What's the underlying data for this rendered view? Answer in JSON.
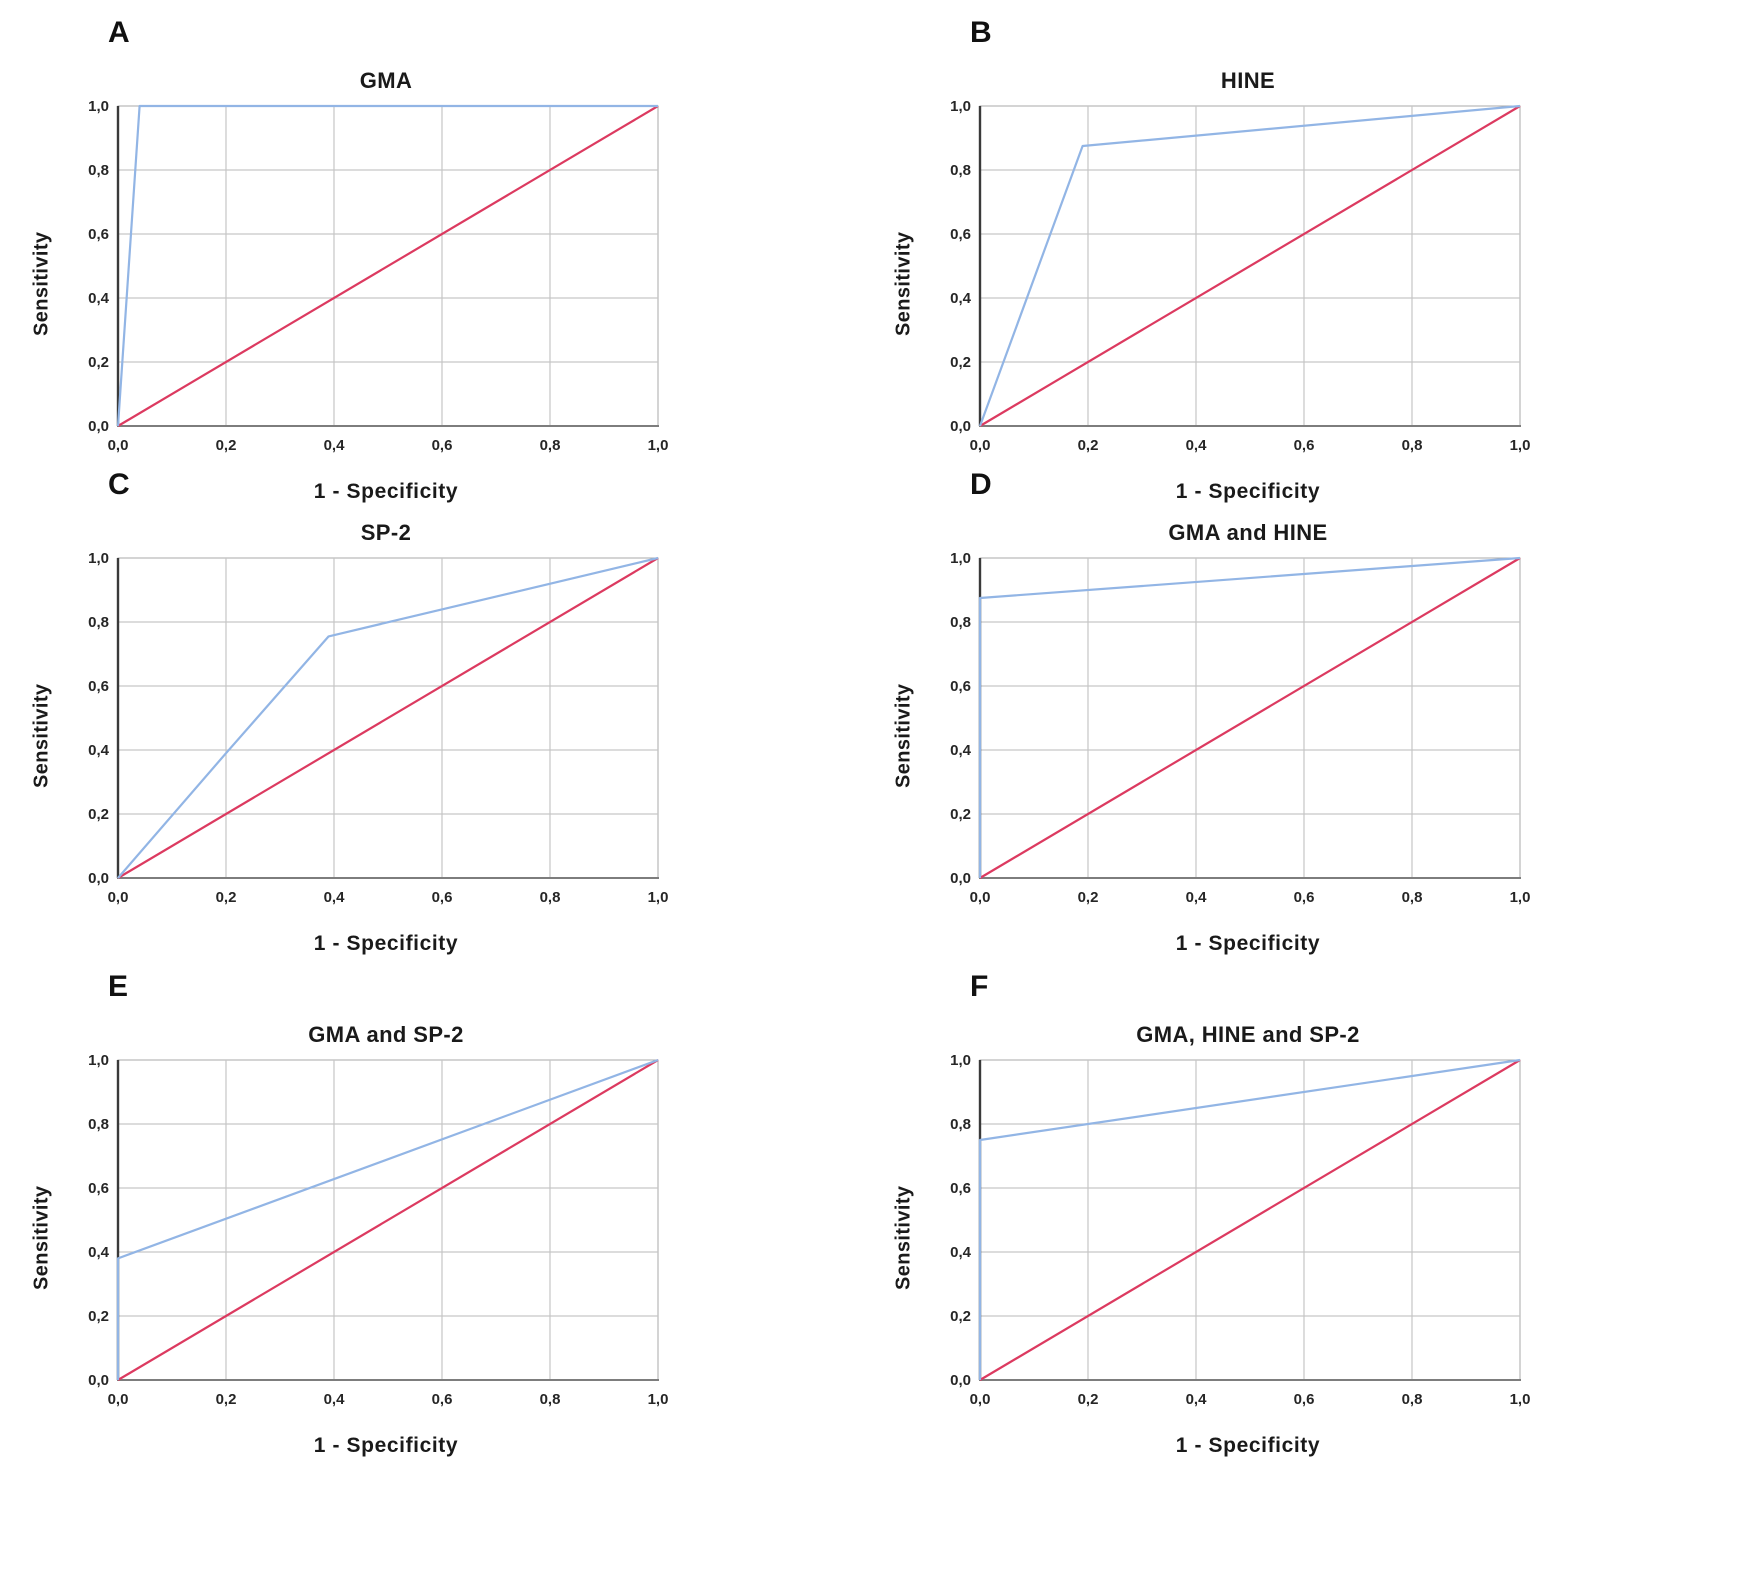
{
  "colors": {
    "roc_curve": "#92b5e5",
    "reference_line": "#dc3a60",
    "gridline": "#c6c6c6",
    "frame": "#a8a8a8",
    "y_axis": "#3a3a3a",
    "x_axis": "#7d7d7d",
    "text": "#262626"
  },
  "chart_data": [
    {
      "panel_label": "A",
      "type": "line",
      "title": "GMA",
      "xlabel": "1 - Specificity",
      "ylabel": "Sensitivity",
      "xlim": [
        0,
        1
      ],
      "ylim": [
        0,
        1
      ],
      "grid": true,
      "legend": "none",
      "tick_values": [
        0,
        0.2,
        0.4,
        0.6,
        0.8,
        1.0
      ],
      "x_tick_labels": [
        "0,0",
        "0,2",
        "0,4",
        "0,6",
        "0,8",
        "1,0"
      ],
      "y_tick_labels": [
        "0,0",
        "0,2",
        "0,4",
        "0,6",
        "0,8",
        "1,0"
      ],
      "series": [
        {
          "name": "ROC curve",
          "color": "#92b5e5",
          "points": [
            [
              0,
              0
            ],
            [
              0.04,
              1.0
            ],
            [
              1.0,
              1.0
            ]
          ]
        },
        {
          "name": "Reference line",
          "color": "#dc3a60",
          "points": [
            [
              0,
              0
            ],
            [
              1.0,
              1.0
            ]
          ]
        }
      ]
    },
    {
      "panel_label": "B",
      "type": "line",
      "title": "HINE",
      "xlabel": "1 - Specificity",
      "ylabel": "Sensitivity",
      "xlim": [
        0,
        1
      ],
      "ylim": [
        0,
        1
      ],
      "grid": true,
      "legend": "none",
      "tick_values": [
        0,
        0.2,
        0.4,
        0.6,
        0.8,
        1.0
      ],
      "x_tick_labels": [
        "0,0",
        "0,2",
        "0,4",
        "0,6",
        "0,8",
        "1,0"
      ],
      "y_tick_labels": [
        "0,0",
        "0,2",
        "0,4",
        "0,6",
        "0,8",
        "1,0"
      ],
      "series": [
        {
          "name": "ROC curve",
          "color": "#92b5e5",
          "points": [
            [
              0,
              0
            ],
            [
              0.19,
              0.875
            ],
            [
              1.0,
              1.0
            ]
          ]
        },
        {
          "name": "Reference line",
          "color": "#dc3a60",
          "points": [
            [
              0,
              0
            ],
            [
              1.0,
              1.0
            ]
          ]
        }
      ]
    },
    {
      "panel_label": "C",
      "type": "line",
      "title": "SP-2",
      "xlabel": "1 - Specificity",
      "ylabel": "Sensitivity",
      "xlim": [
        0,
        1
      ],
      "ylim": [
        0,
        1
      ],
      "grid": true,
      "legend": "none",
      "tick_values": [
        0,
        0.2,
        0.4,
        0.6,
        0.8,
        1.0
      ],
      "x_tick_labels": [
        "0,0",
        "0,2",
        "0,4",
        "0,6",
        "0,8",
        "1,0"
      ],
      "y_tick_labels": [
        "0,0",
        "0,2",
        "0,4",
        "0,6",
        "0,8",
        "1,0"
      ],
      "series": [
        {
          "name": "ROC curve",
          "color": "#92b5e5",
          "points": [
            [
              0,
              0
            ],
            [
              0.2,
              0.39
            ],
            [
              0.39,
              0.755
            ],
            [
              1.0,
              1.0
            ]
          ]
        },
        {
          "name": "Reference line",
          "color": "#dc3a60",
          "points": [
            [
              0,
              0
            ],
            [
              1.0,
              1.0
            ]
          ]
        }
      ]
    },
    {
      "panel_label": "D",
      "type": "line",
      "title": "GMA and HINE",
      "xlabel": "1 - Specificity",
      "ylabel": "Sensitivity",
      "xlim": [
        0,
        1
      ],
      "ylim": [
        0,
        1
      ],
      "grid": true,
      "legend": "none",
      "tick_values": [
        0,
        0.2,
        0.4,
        0.6,
        0.8,
        1.0
      ],
      "x_tick_labels": [
        "0,0",
        "0,2",
        "0,4",
        "0,6",
        "0,8",
        "1,0"
      ],
      "y_tick_labels": [
        "0,0",
        "0,2",
        "0,4",
        "0,6",
        "0,8",
        "1,0"
      ],
      "series": [
        {
          "name": "ROC curve",
          "color": "#92b5e5",
          "points": [
            [
              0,
              0
            ],
            [
              0,
              0.875
            ],
            [
              1.0,
              1.0
            ]
          ]
        },
        {
          "name": "Reference line",
          "color": "#dc3a60",
          "points": [
            [
              0,
              0
            ],
            [
              1.0,
              1.0
            ]
          ]
        }
      ]
    },
    {
      "panel_label": "E",
      "type": "line",
      "title": "GMA and SP-2",
      "xlabel": "1 - Specificity",
      "ylabel": "Sensitivity",
      "xlim": [
        0,
        1
      ],
      "ylim": [
        0,
        1
      ],
      "grid": true,
      "legend": "none",
      "tick_values": [
        0,
        0.2,
        0.4,
        0.6,
        0.8,
        1.0
      ],
      "x_tick_labels": [
        "0,0",
        "0,2",
        "0,4",
        "0,6",
        "0,8",
        "1,0"
      ],
      "y_tick_labels": [
        "0,0",
        "0,2",
        "0,4",
        "0,6",
        "0,8",
        "1,0"
      ],
      "series": [
        {
          "name": "ROC curve",
          "color": "#92b5e5",
          "points": [
            [
              0,
              0
            ],
            [
              0,
              0.38
            ],
            [
              1.0,
              1.0
            ]
          ]
        },
        {
          "name": "Reference line",
          "color": "#dc3a60",
          "points": [
            [
              0,
              0
            ],
            [
              1.0,
              1.0
            ]
          ]
        }
      ]
    },
    {
      "panel_label": "F",
      "type": "line",
      "title": "GMA, HINE and SP-2",
      "xlabel": "1 - Specificity",
      "ylabel": "Sensitivity",
      "xlim": [
        0,
        1
      ],
      "ylim": [
        0,
        1
      ],
      "grid": true,
      "legend": "none",
      "tick_values": [
        0,
        0.2,
        0.4,
        0.6,
        0.8,
        1.0
      ],
      "x_tick_labels": [
        "0,0",
        "0,2",
        "0,4",
        "0,6",
        "0,8",
        "1,0"
      ],
      "y_tick_labels": [
        "0,0",
        "0,2",
        "0,4",
        "0,6",
        "0,8",
        "1,0"
      ],
      "series": [
        {
          "name": "ROC curve",
          "color": "#92b5e5",
          "points": [
            [
              0,
              0
            ],
            [
              0,
              0.75
            ],
            [
              1.0,
              1.0
            ]
          ]
        },
        {
          "name": "Reference line",
          "color": "#dc3a60",
          "points": [
            [
              0,
              0
            ],
            [
              1.0,
              1.0
            ]
          ]
        }
      ]
    }
  ]
}
